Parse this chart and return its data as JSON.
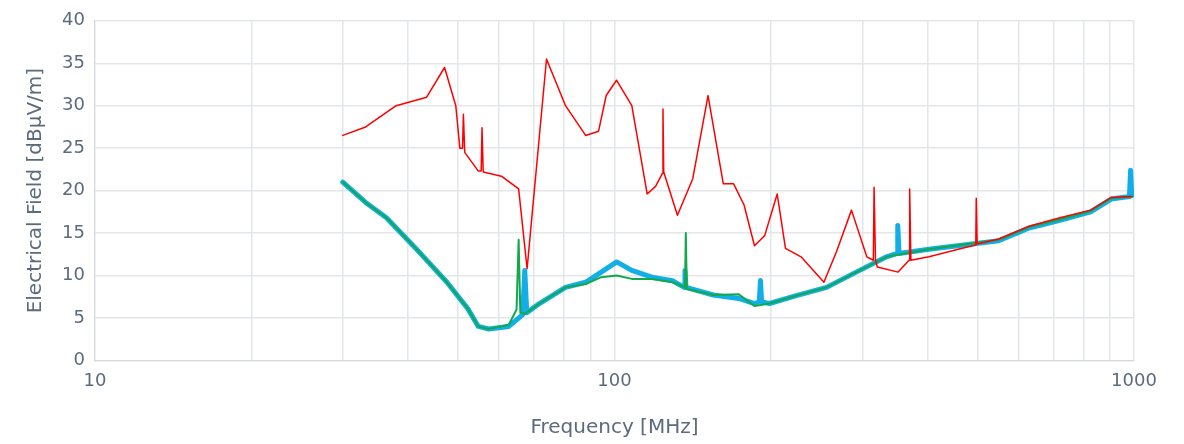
{
  "chart_data": {
    "type": "line",
    "xlabel": "Frequency [MHz]",
    "ylabel": "Electrical Field [dBµV/m]",
    "log": "x",
    "xlim": [
      10,
      1000
    ],
    "ylim": [
      0,
      40
    ],
    "xticks": [
      10,
      {
        "value": 20,
        "label": null
      },
      {
        "value": 30,
        "label": null
      },
      {
        "value": 40,
        "label": null
      },
      {
        "value": 50,
        "label": null
      },
      {
        "value": 60,
        "label": null
      },
      {
        "value": 70,
        "label": null
      },
      {
        "value": 80,
        "label": null
      },
      {
        "value": 90,
        "label": null
      },
      100,
      {
        "value": 200,
        "label": null
      },
      {
        "value": 300,
        "label": null
      },
      {
        "value": 400,
        "label": null
      },
      {
        "value": 500,
        "label": null
      },
      {
        "value": 600,
        "label": null
      },
      {
        "value": 700,
        "label": null
      },
      {
        "value": 800,
        "label": null
      },
      {
        "value": 900,
        "label": null
      },
      1000
    ],
    "yticks": [
      0,
      5,
      10,
      15,
      20,
      25,
      30,
      35,
      40
    ],
    "grid": true,
    "legend": false,
    "marker": "none",
    "line_style": "solid",
    "series": [
      {
        "color": "#ff0000",
        "x": [
          30,
          33.2,
          38,
          43.5,
          47.1,
          49.5,
          50.4,
          51,
          51.2,
          51.5,
          54.7,
          55.4,
          55.6,
          55.9,
          60.6,
          65.4,
          67.9,
          74,
          80.5,
          88,
          93.2,
          96.4,
          100.9,
          108,
          115.6,
          120,
          123.6,
          124,
          124.4,
          132.2,
          141.5,
          151.4,
          162,
          169.6,
          177.6,
          186,
          194.6,
          205.7,
          213.4,
          228.6,
          246.4,
          253,
          267.5,
          285.9,
          306,
          315,
          316,
          318,
          320.6,
          351.5,
          369,
          370,
          372,
          402.9,
          458.7,
          496,
          497,
          499,
          549,
          628,
          720,
          825,
          904,
          990
        ],
        "values": [
          26.5,
          27.5,
          30,
          31,
          34.5,
          30,
          25,
          25,
          29,
          24.5,
          22.3,
          22.3,
          27.4,
          22.2,
          21.7,
          20.2,
          10.8,
          35.5,
          30,
          26.5,
          27,
          31.2,
          33,
          30,
          19.6,
          20.5,
          22,
          29.6,
          22.2,
          17.1,
          21.4,
          31.2,
          20.8,
          20.8,
          18.3,
          13.5,
          14.7,
          19.6,
          13.2,
          12.2,
          10,
          9.2,
          12.8,
          17.7,
          12.2,
          11.8,
          20.4,
          11.8,
          11,
          10.4,
          11.8,
          20.2,
          11.8,
          12.2,
          13.1,
          13.6,
          19.1,
          13.7,
          14.3,
          15.8,
          16.8,
          17.7,
          19.2,
          19.3
        ]
      },
      {
        "color": "#13a84a",
        "x": [
          30,
          33.2,
          36.4,
          41.6,
          47.6,
          52.2,
          54.7,
          57.3,
          62.6,
          64.8,
          65.4,
          65.9,
          67.2,
          71.7,
          80.5,
          88,
          94.3,
          101,
          108,
          118,
          129.3,
          136.7,
          137.2,
          137.8,
          155,
          173.5,
          186,
          198.8,
          223,
          256,
          292,
          334,
          402.9,
          549,
          628,
          720,
          825,
          904,
          990
        ],
        "values": [
          21,
          18.6,
          16.8,
          13.1,
          9.2,
          6.1,
          4,
          3.7,
          4.2,
          6,
          14.2,
          5.6,
          5.5,
          6.7,
          8.6,
          9,
          9.8,
          10,
          9.6,
          9.6,
          9.2,
          8.6,
          15,
          8.4,
          7.7,
          7.8,
          6.4,
          6.7,
          7.6,
          8.6,
          10.4,
          12.2,
          13.1,
          14.2,
          15.7,
          16.6,
          17.6,
          19.1,
          19.3
        ]
      },
      {
        "color": "#12aee8",
        "x": [
          30,
          33.2,
          36.4,
          41.6,
          47.6,
          52.2,
          54.7,
          57.3,
          62.6,
          66.6,
          67.2,
          67.8,
          71.7,
          80.5,
          88,
          94.3,
          101,
          108,
          118,
          129.3,
          136.2,
          136.7,
          137.3,
          155,
          173.5,
          186,
          190,
          191,
          192,
          198.8,
          223,
          256,
          292,
          334,
          350,
          351,
          353,
          402.9,
          549,
          628,
          720,
          825,
          904,
          980,
          985,
          990
        ],
        "values": [
          21,
          18.6,
          16.8,
          13.1,
          9.2,
          6.1,
          4,
          3.7,
          4,
          5.4,
          10.6,
          5.6,
          6.7,
          8.6,
          9.2,
          10.4,
          11.6,
          10.6,
          9.8,
          9.4,
          8.6,
          10.6,
          8.6,
          7.7,
          7.3,
          6.7,
          6.9,
          9.4,
          6.9,
          6.7,
          7.6,
          8.6,
          10.4,
          12.2,
          12.6,
          15.9,
          12.6,
          13.1,
          14.1,
          15.6,
          16.5,
          17.5,
          19,
          19.3,
          22.4,
          19.4
        ]
      }
    ]
  }
}
